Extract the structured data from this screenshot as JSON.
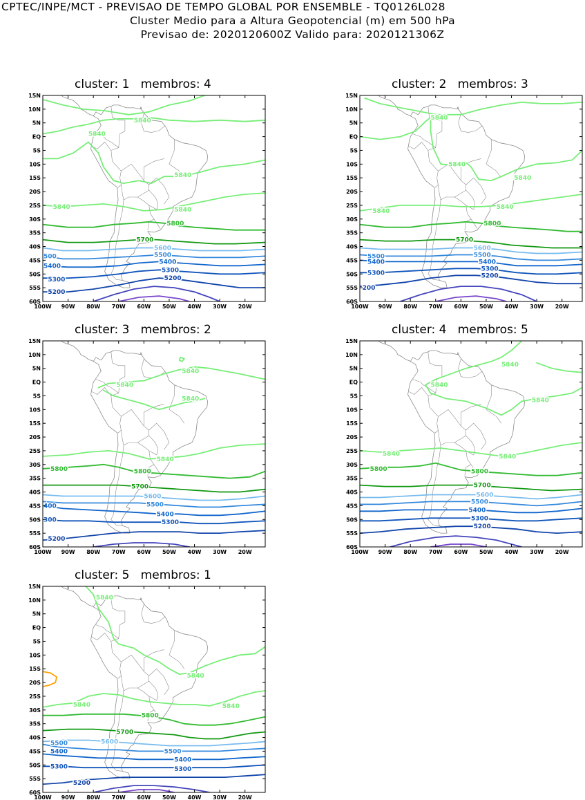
{
  "header": {
    "line1": "CPTEC/INPE/MCT - PREVISAO DE TEMPO GLOBAL POR ENSEMBLE - TQ0126L028",
    "line2": "Cluster Medio para a Altura Geopotencial (m) em 500 hPa",
    "line3": "Previsao de: 2020120600Z    Valido para: 2020121306Z"
  },
  "axes": {
    "lat_labels": [
      "15N",
      "10N",
      "5N",
      "EQ",
      "5S",
      "10S",
      "15S",
      "20S",
      "25S",
      "30S",
      "35S",
      "40S",
      "45S",
      "50S",
      "55S",
      "60S"
    ],
    "lon_labels": [
      "100W",
      "90W",
      "80W",
      "70W",
      "60W",
      "50W",
      "40W",
      "30W",
      "20W"
    ]
  },
  "colors": {
    "c5840": "#77ee77",
    "c5800": "#33bb33",
    "c5700": "#119911",
    "c5600": "#77bbee",
    "c5500": "#3388dd",
    "c5400": "#1166cc",
    "c5300": "#1155bb",
    "c5200": "#1144aa",
    "c5100": "#4444bb",
    "c5000": "#7744cc",
    "c5880": "#ffa000",
    "coast": "#8c8c8c"
  },
  "panels": [
    {
      "title": "cluster: 1   membros: 4",
      "labels": [
        {
          "text": "5840",
          "lon": -64,
          "lat": 6,
          "c": "c5840"
        },
        {
          "text": "5840",
          "lon": -82,
          "lat": 1,
          "c": "c5840"
        },
        {
          "text": "5840",
          "lon": -48,
          "lat": -14,
          "c": "c5840"
        },
        {
          "text": "5840",
          "lon": -96,
          "lat": -25.5,
          "c": "c5840"
        },
        {
          "text": "5840",
          "lon": -48,
          "lat": -26.5,
          "c": "c5840"
        },
        {
          "text": "5800",
          "lon": -51,
          "lat": -31.5,
          "c": "c5800"
        },
        {
          "text": "5700",
          "lon": -63,
          "lat": -37.5,
          "c": "c5700"
        },
        {
          "text": "5600",
          "lon": -56,
          "lat": -40.5,
          "c": "c5600"
        },
        {
          "text": "500",
          "lon": -100,
          "lat": -43.5,
          "c": "c5500"
        },
        {
          "text": "5500",
          "lon": -56,
          "lat": -43,
          "c": "c5500"
        },
        {
          "text": "5400",
          "lon": -100,
          "lat": -47,
          "c": "c5400"
        },
        {
          "text": "5400",
          "lon": -54,
          "lat": -45.5,
          "c": "c5400"
        },
        {
          "text": "5300",
          "lon": -98,
          "lat": -52,
          "c": "c5300"
        },
        {
          "text": "5300",
          "lon": -53,
          "lat": -48.5,
          "c": "c5300"
        },
        {
          "text": "5200",
          "lon": -98,
          "lat": -56.5,
          "c": "c5200"
        },
        {
          "text": "5200",
          "lon": -52,
          "lat": -51.5,
          "c": "c5200"
        }
      ]
    },
    {
      "title": "cluster: 2   membros: 3",
      "labels": [
        {
          "text": "5840",
          "lon": -72,
          "lat": 7,
          "c": "c5840"
        },
        {
          "text": "5840",
          "lon": -65,
          "lat": -10,
          "c": "c5840"
        },
        {
          "text": "5840",
          "lon": -39,
          "lat": -15,
          "c": "c5840"
        },
        {
          "text": "5840",
          "lon": -95,
          "lat": -27,
          "c": "c5840"
        },
        {
          "text": "5840",
          "lon": -46,
          "lat": -25.5,
          "c": "c5840"
        },
        {
          "text": "5800",
          "lon": -51,
          "lat": -31.5,
          "c": "c5800"
        },
        {
          "text": "5700",
          "lon": -62,
          "lat": -37.5,
          "c": "c5700"
        },
        {
          "text": "5600",
          "lon": -55,
          "lat": -40.5,
          "c": "c5600"
        },
        {
          "text": "5500",
          "lon": -97,
          "lat": -43.5,
          "c": "c5500"
        },
        {
          "text": "5500",
          "lon": -55,
          "lat": -43,
          "c": "c5500"
        },
        {
          "text": "5400",
          "lon": -97,
          "lat": -45.5,
          "c": "c5400"
        },
        {
          "text": "5400",
          "lon": -53,
          "lat": -45.5,
          "c": "c5400"
        },
        {
          "text": "5300",
          "lon": -97,
          "lat": -49.5,
          "c": "c5300"
        },
        {
          "text": "5300",
          "lon": -52,
          "lat": -48,
          "c": "c5300"
        },
        {
          "text": "200",
          "lon": -99,
          "lat": -55,
          "c": "c5200"
        },
        {
          "text": "5200",
          "lon": -52,
          "lat": -50.5,
          "c": "c5200"
        }
      ]
    },
    {
      "title": "cluster: 3   membros: 2",
      "labels": [
        {
          "text": "5840",
          "lon": -45,
          "lat": 4,
          "c": "c5840"
        },
        {
          "text": "5840",
          "lon": -71,
          "lat": -1,
          "c": "c5840"
        },
        {
          "text": "5840",
          "lon": -45,
          "lat": -6,
          "c": "c5840"
        },
        {
          "text": "5840",
          "lon": -55,
          "lat": -28,
          "c": "c5840"
        },
        {
          "text": "5800",
          "lon": -97,
          "lat": -31.5,
          "c": "c5800"
        },
        {
          "text": "5800",
          "lon": -64,
          "lat": -32.5,
          "c": "c5800"
        },
        {
          "text": "5700",
          "lon": -65,
          "lat": -38,
          "c": "c5700"
        },
        {
          "text": "5600",
          "lon": -60,
          "lat": -41.5,
          "c": "c5600"
        },
        {
          "text": "5500",
          "lon": -59,
          "lat": -44.5,
          "c": "c5500"
        },
        {
          "text": "400",
          "lon": -100,
          "lat": -45,
          "c": "c5400"
        },
        {
          "text": "5400",
          "lon": -55,
          "lat": -48,
          "c": "c5400"
        },
        {
          "text": "300",
          "lon": -100,
          "lat": -50,
          "c": "c5300"
        },
        {
          "text": "5300",
          "lon": -53,
          "lat": -51,
          "c": "c5300"
        },
        {
          "text": "5200",
          "lon": -98,
          "lat": -57,
          "c": "c5200"
        }
      ]
    },
    {
      "title": "cluster: 4   membros: 5",
      "labels": [
        {
          "text": "5840",
          "lon": -44,
          "lat": 6.5,
          "c": "c5840"
        },
        {
          "text": "5840",
          "lon": -72,
          "lat": -1,
          "c": "c5840"
        },
        {
          "text": "5840",
          "lon": -32,
          "lat": -6.5,
          "c": "c5840"
        },
        {
          "text": "5840",
          "lon": -91,
          "lat": -26,
          "c": "c5840"
        },
        {
          "text": "5840",
          "lon": -45,
          "lat": -27,
          "c": "c5840"
        },
        {
          "text": "5800",
          "lon": -96,
          "lat": -31.5,
          "c": "c5800"
        },
        {
          "text": "5800",
          "lon": -56,
          "lat": -32.5,
          "c": "c5800"
        },
        {
          "text": "5700",
          "lon": -55,
          "lat": -37.5,
          "c": "c5700"
        },
        {
          "text": "5600",
          "lon": -54,
          "lat": -41,
          "c": "c5600"
        },
        {
          "text": "5500",
          "lon": -56,
          "lat": -43.5,
          "c": "c5500"
        },
        {
          "text": "5400",
          "lon": -57,
          "lat": -46.5,
          "c": "c5400"
        },
        {
          "text": "5300",
          "lon": -56,
          "lat": -49.5,
          "c": "c5300"
        },
        {
          "text": "5200",
          "lon": -55,
          "lat": -52.5,
          "c": "c5200"
        }
      ]
    },
    {
      "title": "cluster: 5   membros: 1",
      "labels": [
        {
          "text": "5840",
          "lon": -79,
          "lat": 11,
          "c": "c5840"
        },
        {
          "text": "5840",
          "lon": -43,
          "lat": -17.5,
          "c": "c5840"
        },
        {
          "text": "5840",
          "lon": -88,
          "lat": -28,
          "c": "c5840"
        },
        {
          "text": "5840",
          "lon": -29,
          "lat": -28.5,
          "c": "c5840"
        },
        {
          "text": "5800",
          "lon": -61,
          "lat": -32,
          "c": "c5800"
        },
        {
          "text": "5700",
          "lon": -71,
          "lat": -38,
          "c": "c5700"
        },
        {
          "text": "5600",
          "lon": -77,
          "lat": -41.5,
          "c": "c5600"
        },
        {
          "text": "5500",
          "lon": -97,
          "lat": -42,
          "c": "c5500"
        },
        {
          "text": "5500",
          "lon": -52,
          "lat": -45,
          "c": "c5500"
        },
        {
          "text": "5400",
          "lon": -97,
          "lat": -45,
          "c": "c5400"
        },
        {
          "text": "5400",
          "lon": -48,
          "lat": -48,
          "c": "c5400"
        },
        {
          "text": "5300",
          "lon": -97,
          "lat": -50.5,
          "c": "c5300"
        },
        {
          "text": "5300",
          "lon": -48,
          "lat": -51.5,
          "c": "c5300"
        },
        {
          "text": "5200",
          "lon": -88,
          "lat": -56.5,
          "c": "c5200"
        }
      ]
    }
  ]
}
